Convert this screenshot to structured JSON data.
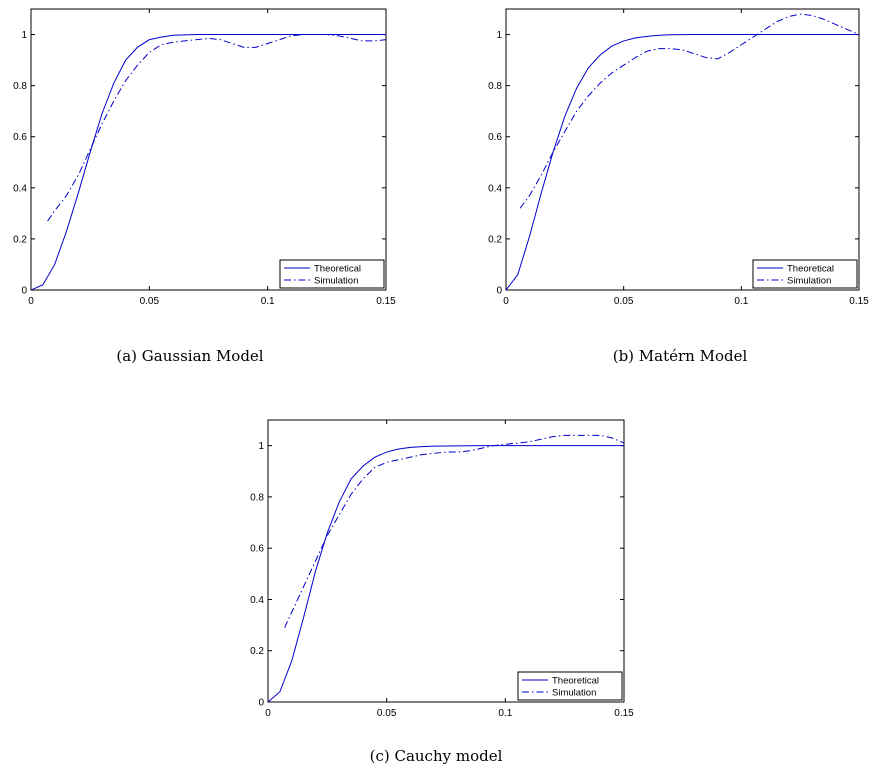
{
  "chart_data": [
    {
      "type": "line",
      "caption": "(a) Gaussian Model",
      "xlim": [
        0,
        0.15
      ],
      "ylim": [
        0,
        1.1
      ],
      "xticks": [
        0,
        0.05,
        0.1,
        0.15
      ],
      "xtick_labels": [
        "0",
        "0.05",
        "0.1",
        "0.15"
      ],
      "yticks": [
        0,
        0.2,
        0.4,
        0.6,
        0.8,
        1
      ],
      "ytick_labels": [
        "0",
        "0.2",
        "0.4",
        "0.6",
        "0.8",
        "1"
      ],
      "legend": {
        "placement": "bottom-right"
      },
      "series": [
        {
          "name": "Theoretical",
          "style": "solid",
          "color": "#0000cc",
          "x": [
            0,
            0.005,
            0.01,
            0.015,
            0.02,
            0.025,
            0.03,
            0.035,
            0.04,
            0.045,
            0.05,
            0.055,
            0.06,
            0.07,
            0.08,
            0.09,
            0.1,
            0.11,
            0.12,
            0.13,
            0.14,
            0.15
          ],
          "y": [
            0,
            0.02,
            0.1,
            0.23,
            0.38,
            0.54,
            0.69,
            0.81,
            0.9,
            0.95,
            0.98,
            0.99,
            0.997,
            1.0,
            1.0,
            1.0,
            1.0,
            1.0,
            1.0,
            1.0,
            1.0,
            1.0
          ]
        },
        {
          "name": "Simulation",
          "style": "dashdot",
          "color": "#0000cc",
          "x": [
            0.007,
            0.01,
            0.015,
            0.02,
            0.025,
            0.03,
            0.035,
            0.04,
            0.045,
            0.05,
            0.055,
            0.06,
            0.065,
            0.07,
            0.075,
            0.08,
            0.085,
            0.09,
            0.095,
            0.1,
            0.105,
            0.11,
            0.115,
            0.12,
            0.125,
            0.13,
            0.135,
            0.14,
            0.145,
            0.15
          ],
          "y": [
            0.27,
            0.31,
            0.37,
            0.45,
            0.55,
            0.65,
            0.74,
            0.82,
            0.88,
            0.93,
            0.96,
            0.97,
            0.975,
            0.98,
            0.985,
            0.98,
            0.965,
            0.95,
            0.95,
            0.965,
            0.98,
            0.995,
            1.0,
            1.0,
            1.0,
            0.995,
            0.985,
            0.975,
            0.975,
            0.98
          ]
        }
      ]
    },
    {
      "type": "line",
      "caption": "(b) Matérn Model",
      "xlim": [
        0,
        0.15
      ],
      "ylim": [
        0,
        1.1
      ],
      "xticks": [
        0,
        0.05,
        0.1,
        0.15
      ],
      "xtick_labels": [
        "0",
        "0.05",
        "0.1",
        "0.15"
      ],
      "yticks": [
        0,
        0.2,
        0.4,
        0.6,
        0.8,
        1
      ],
      "ytick_labels": [
        "0",
        "0.2",
        "0.4",
        "0.6",
        "0.8",
        "1"
      ],
      "legend": {
        "placement": "bottom-right"
      },
      "series": [
        {
          "name": "Theoretical",
          "style": "solid",
          "color": "#0000cc",
          "x": [
            0,
            0.005,
            0.01,
            0.015,
            0.02,
            0.025,
            0.03,
            0.035,
            0.04,
            0.045,
            0.05,
            0.055,
            0.06,
            0.065,
            0.07,
            0.08,
            0.09,
            0.1,
            0.11,
            0.12,
            0.13,
            0.14,
            0.15
          ],
          "y": [
            0,
            0.06,
            0.21,
            0.38,
            0.54,
            0.68,
            0.79,
            0.87,
            0.92,
            0.955,
            0.975,
            0.987,
            0.993,
            0.997,
            0.999,
            1.0,
            1.0,
            1.0,
            1.0,
            1.0,
            1.0,
            1.0,
            1.0
          ]
        },
        {
          "name": "Simulation",
          "style": "dashdot",
          "color": "#0000cc",
          "x": [
            0.006,
            0.01,
            0.015,
            0.02,
            0.025,
            0.03,
            0.035,
            0.04,
            0.045,
            0.05,
            0.055,
            0.06,
            0.065,
            0.07,
            0.075,
            0.08,
            0.085,
            0.09,
            0.095,
            0.1,
            0.105,
            0.11,
            0.115,
            0.12,
            0.125,
            0.13,
            0.135,
            0.14,
            0.145,
            0.15
          ],
          "y": [
            0.32,
            0.37,
            0.45,
            0.54,
            0.62,
            0.7,
            0.76,
            0.81,
            0.85,
            0.88,
            0.91,
            0.935,
            0.945,
            0.945,
            0.94,
            0.925,
            0.91,
            0.905,
            0.93,
            0.96,
            0.99,
            1.02,
            1.05,
            1.07,
            1.08,
            1.075,
            1.06,
            1.04,
            1.02,
            1.0
          ]
        }
      ]
    },
    {
      "type": "line",
      "caption": "(c) Cauchy model",
      "xlim": [
        0,
        0.15
      ],
      "ylim": [
        0,
        1.1
      ],
      "xticks": [
        0,
        0.05,
        0.1,
        0.15
      ],
      "xtick_labels": [
        "0",
        "0.05",
        "0.1",
        "0.15"
      ],
      "yticks": [
        0,
        0.2,
        0.4,
        0.6,
        0.8,
        1
      ],
      "ytick_labels": [
        "0",
        "0.2",
        "0.4",
        "0.6",
        "0.8",
        "1"
      ],
      "legend": {
        "placement": "bottom-right"
      },
      "series": [
        {
          "name": "Theoretical",
          "style": "solid",
          "color": "#0000cc",
          "x": [
            0,
            0.005,
            0.01,
            0.015,
            0.02,
            0.025,
            0.03,
            0.035,
            0.04,
            0.045,
            0.05,
            0.055,
            0.06,
            0.065,
            0.07,
            0.08,
            0.09,
            0.1,
            0.11,
            0.12,
            0.13,
            0.14,
            0.15
          ],
          "y": [
            0,
            0.04,
            0.16,
            0.33,
            0.51,
            0.66,
            0.78,
            0.87,
            0.92,
            0.955,
            0.975,
            0.987,
            0.993,
            0.996,
            0.998,
            0.999,
            1.0,
            1.0,
            1.0,
            1.0,
            1.0,
            1.0,
            1.0
          ]
        },
        {
          "name": "Simulation",
          "style": "dashdot",
          "color": "#0000cc",
          "x": [
            0.007,
            0.01,
            0.015,
            0.02,
            0.025,
            0.03,
            0.035,
            0.04,
            0.045,
            0.05,
            0.055,
            0.06,
            0.065,
            0.07,
            0.075,
            0.08,
            0.085,
            0.09,
            0.095,
            0.1,
            0.105,
            0.11,
            0.115,
            0.12,
            0.125,
            0.13,
            0.135,
            0.14,
            0.145,
            0.15
          ],
          "y": [
            0.29,
            0.35,
            0.45,
            0.55,
            0.65,
            0.73,
            0.81,
            0.87,
            0.915,
            0.935,
            0.945,
            0.955,
            0.965,
            0.97,
            0.975,
            0.975,
            0.98,
            0.99,
            1.0,
            1.005,
            1.01,
            1.015,
            1.025,
            1.035,
            1.04,
            1.04,
            1.04,
            1.04,
            1.03,
            1.01
          ]
        }
      ]
    }
  ]
}
